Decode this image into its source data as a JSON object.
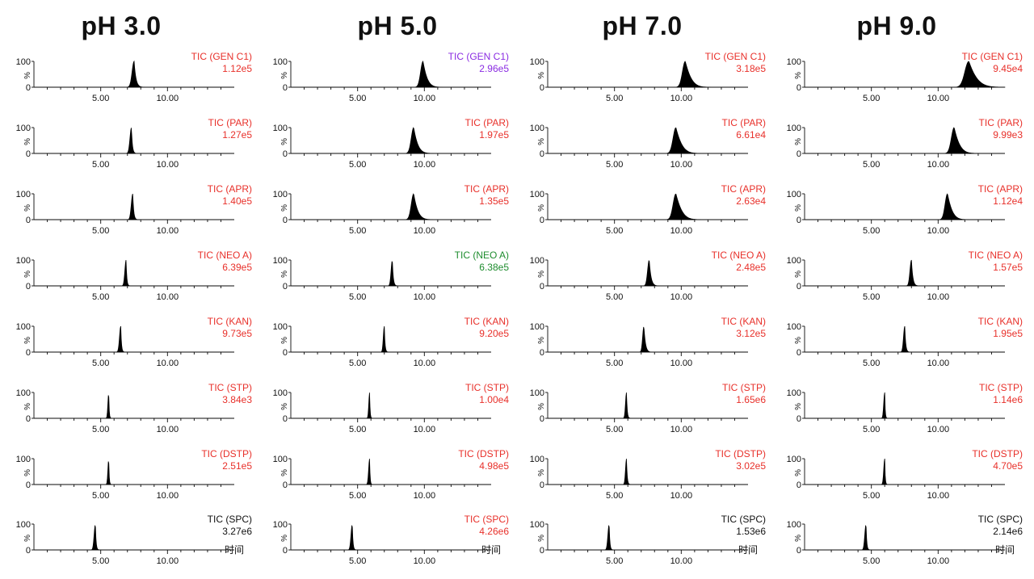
{
  "figure": {
    "columns": [
      {
        "title": "pH 3.0"
      },
      {
        "title": "pH 5.0"
      },
      {
        "title": "pH 7.0"
      },
      {
        "title": "pH 9.0"
      }
    ],
    "axis_unit_label": "时间",
    "y_tick_labels": [
      "100",
      "%",
      "0"
    ],
    "x_tick_labels": [
      "5.00",
      "10.00"
    ]
  },
  "colors": {
    "red": "#e8302a",
    "purple": "#8a2be2",
    "green": "#1e8c2e",
    "black": "#111111"
  },
  "chart_data": {
    "type": "line",
    "description_free": true,
    "xlim": [
      0,
      15
    ],
    "ylim": [
      0,
      100
    ],
    "x_ticks": [
      5.0,
      10.0
    ],
    "panels": [
      {
        "col": 0,
        "row": 0,
        "trace": "TIC (GEN C1)",
        "intensity": "1.12e5",
        "color": "red",
        "peak": 7.5,
        "width": 0.25,
        "tail": 0.4,
        "kind": "sharp"
      },
      {
        "col": 0,
        "row": 1,
        "trace": "TIC (PAR)",
        "intensity": "1.27e5",
        "color": "red",
        "peak": 7.3,
        "width": 0.18,
        "tail": 0.2,
        "kind": "sharp"
      },
      {
        "col": 0,
        "row": 2,
        "trace": "TIC (APR)",
        "intensity": "1.40e5",
        "color": "red",
        "peak": 7.4,
        "width": 0.18,
        "tail": 0.2,
        "kind": "sharp"
      },
      {
        "col": 0,
        "row": 3,
        "trace": "TIC (NEO A)",
        "intensity": "6.39e5",
        "color": "red",
        "peak": 6.9,
        "width": 0.15,
        "tail": 0.15,
        "kind": "sharp"
      },
      {
        "col": 0,
        "row": 4,
        "trace": "TIC (KAN)",
        "intensity": "9.73e5",
        "color": "red",
        "peak": 6.5,
        "width": 0.15,
        "tail": 0.15,
        "kind": "sharp"
      },
      {
        "col": 0,
        "row": 5,
        "trace": "TIC (STP)",
        "intensity": "3.84e3",
        "color": "red",
        "peak": 5.6,
        "width": 0.1,
        "tail": 0.1,
        "kind": "sharp"
      },
      {
        "col": 0,
        "row": 6,
        "trace": "TIC (DSTP)",
        "intensity": "2.51e5",
        "color": "red",
        "peak": 5.6,
        "width": 0.1,
        "tail": 0.1,
        "kind": "sharp"
      },
      {
        "col": 0,
        "row": 7,
        "trace": "TIC (SPC)",
        "intensity": "3.27e6",
        "color": "black",
        "peak": 4.6,
        "width": 0.15,
        "tail": 0.15,
        "kind": "sharp"
      },
      {
        "col": 1,
        "row": 0,
        "trace": "TIC (GEN C1)",
        "intensity": "2.96e5",
        "color": "purple",
        "peak": 9.9,
        "width": 0.3,
        "tail": 0.6,
        "kind": "broad"
      },
      {
        "col": 1,
        "row": 1,
        "trace": "TIC (PAR)",
        "intensity": "1.97e5",
        "color": "red",
        "peak": 9.2,
        "width": 0.3,
        "tail": 0.6,
        "kind": "broad"
      },
      {
        "col": 1,
        "row": 2,
        "trace": "TIC (APR)",
        "intensity": "1.35e5",
        "color": "red",
        "peak": 9.2,
        "width": 0.3,
        "tail": 0.6,
        "kind": "broad"
      },
      {
        "col": 1,
        "row": 3,
        "trace": "TIC (NEO A)",
        "intensity": "6.38e5",
        "color": "green",
        "peak": 7.6,
        "width": 0.15,
        "tail": 0.2,
        "kind": "sharp"
      },
      {
        "col": 1,
        "row": 4,
        "trace": "TIC (KAN)",
        "intensity": "9.20e5",
        "color": "red",
        "peak": 7.0,
        "width": 0.12,
        "tail": 0.15,
        "kind": "sharp"
      },
      {
        "col": 1,
        "row": 5,
        "trace": "TIC (STP)",
        "intensity": "1.00e4",
        "color": "red",
        "peak": 5.9,
        "width": 0.1,
        "tail": 0.1,
        "kind": "sharp"
      },
      {
        "col": 1,
        "row": 6,
        "trace": "TIC (DSTP)",
        "intensity": "4.98e5",
        "color": "red",
        "peak": 5.9,
        "width": 0.12,
        "tail": 0.1,
        "kind": "sharp"
      },
      {
        "col": 1,
        "row": 7,
        "trace": "TIC (SPC)",
        "intensity": "4.26e6",
        "color": "red",
        "peak": 4.6,
        "width": 0.15,
        "tail": 0.15,
        "kind": "sharp"
      },
      {
        "col": 2,
        "row": 0,
        "trace": "TIC (GEN C1)",
        "intensity": "3.18e5",
        "color": "red",
        "peak": 10.3,
        "width": 0.35,
        "tail": 0.9,
        "kind": "broad"
      },
      {
        "col": 2,
        "row": 1,
        "trace": "TIC (PAR)",
        "intensity": "6.61e4",
        "color": "red",
        "peak": 9.6,
        "width": 0.35,
        "tail": 0.9,
        "kind": "broad"
      },
      {
        "col": 2,
        "row": 2,
        "trace": "TIC (APR)",
        "intensity": "2.63e4",
        "color": "red",
        "peak": 9.6,
        "width": 0.35,
        "tail": 0.9,
        "kind": "broad"
      },
      {
        "col": 2,
        "row": 3,
        "trace": "TIC (NEO A)",
        "intensity": "2.48e5",
        "color": "red",
        "peak": 7.6,
        "width": 0.2,
        "tail": 0.4,
        "kind": "sharp"
      },
      {
        "col": 2,
        "row": 4,
        "trace": "TIC (KAN)",
        "intensity": "3.12e5",
        "color": "red",
        "peak": 7.2,
        "width": 0.15,
        "tail": 0.35,
        "kind": "sharp"
      },
      {
        "col": 2,
        "row": 5,
        "trace": "TIC (STP)",
        "intensity": "1.65e6",
        "color": "red",
        "peak": 5.9,
        "width": 0.12,
        "tail": 0.15,
        "kind": "sharp"
      },
      {
        "col": 2,
        "row": 6,
        "trace": "TIC (DSTP)",
        "intensity": "3.02e5",
        "color": "red",
        "peak": 5.9,
        "width": 0.12,
        "tail": 0.15,
        "kind": "sharp"
      },
      {
        "col": 2,
        "row": 7,
        "trace": "TIC (SPC)",
        "intensity": "1.53e6",
        "color": "black",
        "peak": 4.6,
        "width": 0.15,
        "tail": 0.15,
        "kind": "sharp"
      },
      {
        "col": 3,
        "row": 0,
        "trace": "TIC (GEN C1)",
        "intensity": "9.45e4",
        "color": "red",
        "peak": 12.3,
        "width": 0.5,
        "tail": 1.2,
        "kind": "broad"
      },
      {
        "col": 3,
        "row": 1,
        "trace": "TIC (PAR)",
        "intensity": "9.99e3",
        "color": "red",
        "peak": 11.2,
        "width": 0.35,
        "tail": 0.8,
        "kind": "broad"
      },
      {
        "col": 3,
        "row": 2,
        "trace": "TIC (APR)",
        "intensity": "1.12e4",
        "color": "red",
        "peak": 10.7,
        "width": 0.3,
        "tail": 0.7,
        "kind": "broad"
      },
      {
        "col": 3,
        "row": 3,
        "trace": "TIC (NEO A)",
        "intensity": "1.57e5",
        "color": "red",
        "peak": 8.0,
        "width": 0.18,
        "tail": 0.3,
        "kind": "sharp"
      },
      {
        "col": 3,
        "row": 4,
        "trace": "TIC (KAN)",
        "intensity": "1.95e5",
        "color": "red",
        "peak": 7.5,
        "width": 0.15,
        "tail": 0.2,
        "kind": "sharp"
      },
      {
        "col": 3,
        "row": 5,
        "trace": "TIC (STP)",
        "intensity": "1.14e6",
        "color": "red",
        "peak": 6.0,
        "width": 0.12,
        "tail": 0.1,
        "kind": "sharp"
      },
      {
        "col": 3,
        "row": 6,
        "trace": "TIC (DSTP)",
        "intensity": "4.70e5",
        "color": "red",
        "peak": 6.0,
        "width": 0.12,
        "tail": 0.1,
        "kind": "sharp"
      },
      {
        "col": 3,
        "row": 7,
        "trace": "TIC (SPC)",
        "intensity": "2.14e6",
        "color": "black",
        "peak": 4.6,
        "width": 0.15,
        "tail": 0.15,
        "kind": "sharp"
      }
    ]
  }
}
